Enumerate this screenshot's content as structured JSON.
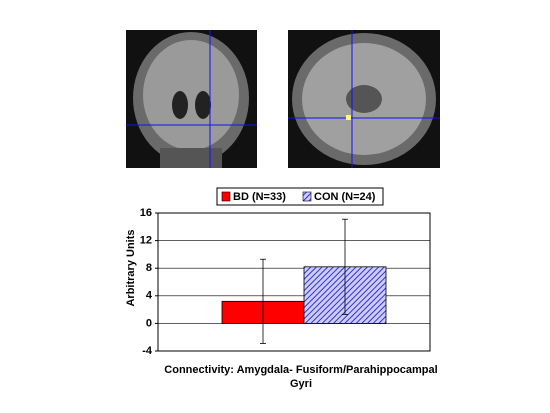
{
  "chart_data": {
    "type": "bar",
    "legend": "top",
    "series": [
      {
        "name": "BD (N=33)",
        "color": "#ff0000",
        "values": [
          3.2
        ],
        "errors": [
          6.1
        ]
      },
      {
        "name": "CON (N=24)",
        "color": "#3333cc",
        "hatch": true,
        "values": [
          8.2
        ],
        "errors": [
          6.9
        ]
      }
    ],
    "y_label": "Arbitrary Units",
    "x_label": [
      "Connectivity: Amygdala- Fusiform/Parahippocampal",
      "Gyri"
    ],
    "ylim": [
      -4,
      16
    ],
    "yticks": [
      -4,
      0,
      4,
      8,
      12,
      16
    ],
    "grid": true
  }
}
